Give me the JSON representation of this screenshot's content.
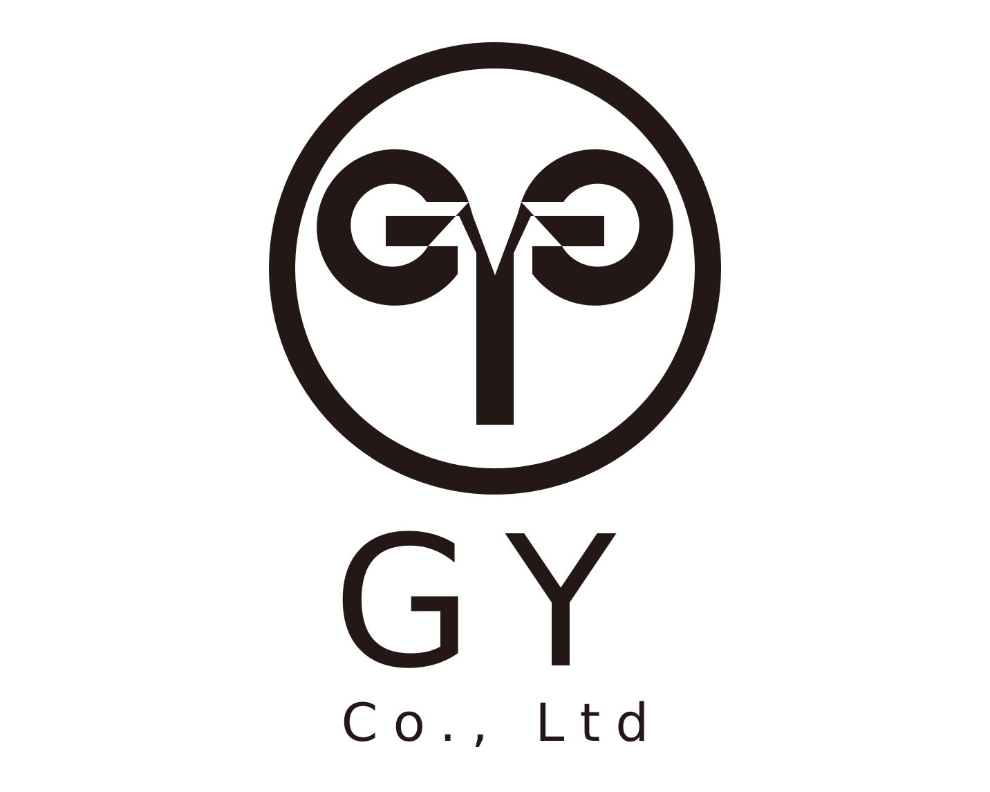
{
  "logo": {
    "monogram": "GYG",
    "wordmark": "GY",
    "subtitle": "Co., Ltd",
    "ink_color": "#231815",
    "background_color": "#ffffff"
  }
}
